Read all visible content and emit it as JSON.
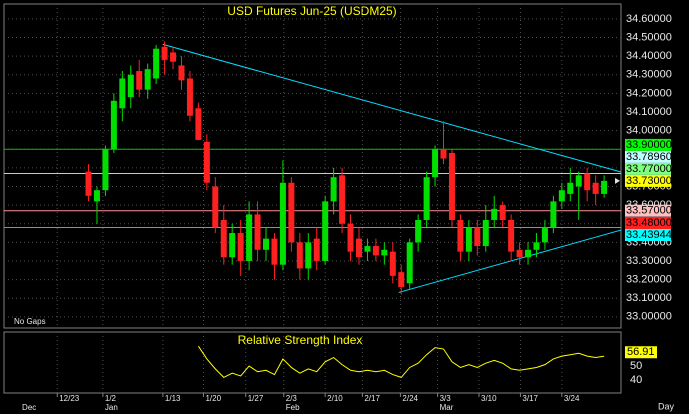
{
  "chart_data": {
    "type": "candlestick",
    "title": "USD Futures Jun-25 (USDM25)",
    "note": "No Gaps",
    "x_axis_label": "Day",
    "x": [
      0,
      1,
      2,
      3,
      4,
      5,
      6,
      7,
      8,
      9,
      10,
      11,
      12,
      13,
      14,
      15,
      16,
      17,
      18,
      19,
      20,
      21,
      22,
      23,
      24,
      25,
      26,
      27,
      28,
      29,
      30,
      31,
      32,
      33,
      34,
      35,
      36,
      37,
      38,
      39,
      40,
      41,
      42,
      43,
      44,
      45,
      46,
      47,
      48,
      49,
      50,
      51,
      52,
      53,
      54,
      55,
      56,
      57,
      58,
      59,
      60,
      61
    ],
    "open": [
      33.78,
      33.62,
      33.68,
      33.9,
      34.12,
      34.18,
      34.32,
      34.22,
      34.28,
      34.45,
      34.42,
      34.35,
      34.28,
      34.12,
      33.94,
      33.7,
      33.52,
      33.32,
      33.45,
      33.3,
      33.55,
      33.36,
      33.42,
      33.28,
      33.72,
      33.4,
      33.26,
      33.42,
      33.3,
      33.62,
      33.76,
      33.5,
      33.42,
      33.35,
      33.38,
      33.33,
      33.35,
      33.24,
      33.18,
      33.4,
      33.52,
      33.75,
      33.9,
      33.88,
      33.52,
      33.35,
      33.48,
      33.38,
      33.52,
      33.6,
      33.52,
      33.36,
      33.32,
      33.36,
      33.4,
      33.48,
      33.62,
      33.66,
      33.7,
      33.77,
      33.72,
      33.66
    ],
    "high": [
      33.82,
      33.7,
      33.92,
      34.2,
      34.32,
      34.35,
      34.38,
      34.36,
      34.46,
      34.48,
      34.45,
      34.4,
      34.32,
      34.15,
      33.98,
      33.75,
      33.6,
      33.5,
      33.52,
      33.62,
      33.62,
      33.48,
      33.45,
      33.84,
      33.75,
      33.45,
      33.45,
      33.48,
      33.65,
      33.8,
      33.8,
      33.55,
      33.48,
      33.42,
      33.42,
      33.4,
      33.4,
      33.28,
      33.42,
      33.55,
      33.78,
      33.92,
      34.05,
      33.9,
      33.55,
      33.52,
      33.52,
      33.6,
      33.65,
      33.62,
      33.55,
      33.4,
      33.4,
      33.45,
      33.52,
      33.65,
      33.72,
      33.8,
      33.78,
      33.8,
      33.76,
      33.76
    ],
    "low": [
      33.62,
      33.5,
      33.65,
      33.88,
      34.05,
      34.12,
      34.18,
      34.17,
      34.25,
      34.3,
      34.33,
      34.22,
      34.05,
      33.95,
      33.68,
      33.45,
      33.28,
      33.28,
      33.22,
      33.25,
      33.3,
      33.3,
      33.2,
      33.25,
      33.35,
      33.2,
      33.2,
      33.25,
      33.28,
      33.55,
      33.45,
      33.3,
      33.28,
      33.3,
      33.3,
      33.28,
      33.18,
      33.12,
      33.15,
      33.35,
      33.48,
      33.7,
      33.82,
      33.48,
      33.3,
      33.3,
      33.33,
      33.35,
      33.48,
      33.48,
      33.3,
      33.28,
      33.28,
      33.32,
      33.36,
      33.45,
      33.58,
      33.62,
      33.52,
      33.62,
      33.6,
      33.64
    ],
    "close": [
      33.65,
      33.68,
      33.9,
      34.16,
      34.28,
      34.3,
      34.22,
      34.33,
      34.44,
      34.38,
      34.37,
      34.27,
      34.08,
      33.95,
      33.72,
      33.48,
      33.32,
      33.45,
      33.3,
      33.55,
      33.36,
      33.42,
      33.28,
      33.72,
      33.4,
      33.26,
      33.4,
      33.3,
      33.62,
      33.75,
      33.5,
      33.35,
      33.32,
      33.38,
      33.33,
      33.36,
      33.22,
      33.16,
      33.4,
      33.52,
      33.75,
      33.9,
      33.85,
      33.52,
      33.35,
      33.48,
      33.38,
      33.52,
      33.58,
      33.52,
      33.35,
      33.32,
      33.36,
      33.4,
      33.48,
      33.62,
      33.68,
      33.72,
      33.76,
      33.68,
      33.66,
      33.73
    ],
    "up_color": "#00e000",
    "down_color": "#ff2020",
    "xlim": [
      -10,
      63
    ],
    "ylim": [
      32.94,
      34.68
    ],
    "yticks": [
      {
        "value": 34.6,
        "label": "34.60000"
      },
      {
        "value": 34.5,
        "label": "34.50000"
      },
      {
        "value": 34.4,
        "label": "34.40000"
      },
      {
        "value": 34.3,
        "label": "34.30000"
      },
      {
        "value": 34.2,
        "label": "34.20000"
      },
      {
        "value": 34.1,
        "label": "34.10000"
      },
      {
        "value": 34.0,
        "label": "34.00000"
      },
      {
        "value": 33.9,
        "label": "33.90000"
      },
      {
        "value": 33.8,
        "label": "33.80000"
      },
      {
        "value": 33.7,
        "label": "33.70000"
      },
      {
        "value": 33.6,
        "label": "33.60000"
      },
      {
        "value": 33.5,
        "label": "33.50000"
      },
      {
        "value": 33.4,
        "label": "33.40000"
      },
      {
        "value": 33.3,
        "label": "33.30000"
      },
      {
        "value": 33.2,
        "label": "33.20000"
      },
      {
        "value": 33.1,
        "label": "33.10000"
      },
      {
        "value": 33.0,
        "label": "33.00000"
      }
    ],
    "xticks": [
      {
        "value": -3.7,
        "label": "12/23"
      },
      {
        "value": 1.7,
        "label": "1/2"
      },
      {
        "value": 8.8,
        "label": "1/13"
      },
      {
        "value": 13.6,
        "label": "1/20"
      },
      {
        "value": 18.6,
        "label": "1/27"
      },
      {
        "value": 23.1,
        "label": "2/3"
      },
      {
        "value": 28.0,
        "label": "2/10"
      },
      {
        "value": 32.4,
        "label": "2/17"
      },
      {
        "value": 36.9,
        "label": "2/24"
      },
      {
        "value": 41.3,
        "label": "3/3"
      },
      {
        "value": 46.2,
        "label": "3/10"
      },
      {
        "value": 51.1,
        "label": "3/17"
      },
      {
        "value": 56.0,
        "label": "3/24"
      }
    ],
    "month_ticks": [
      {
        "value": -8.1,
        "label": "Dec"
      },
      {
        "value": 1.7,
        "label": "Jan"
      },
      {
        "value": 23.1,
        "label": "Feb"
      },
      {
        "value": 41.3,
        "label": "Mar"
      }
    ],
    "grid": true,
    "levels": [
      {
        "value": 33.9,
        "label": "33.90000",
        "color": "#00ff00",
        "line_color": "#00c000"
      },
      {
        "value": 33.7896,
        "label": "33.78960",
        "color": "#c0ffff"
      },
      {
        "value": 33.77,
        "label": "33.77000",
        "color": "#80ff80",
        "line_color": "#80ff80"
      },
      {
        "value": 33.73,
        "label": "33.73000",
        "color": "#ffff00"
      },
      {
        "value": 33.57,
        "label": "33.57000",
        "color": "#ffc0c0",
        "line_color": "#ff9090"
      },
      {
        "value": 33.48,
        "label": "33.48000",
        "color": "#ff2020",
        "line_color": "#ff6060"
      },
      {
        "value": 33.43944,
        "label": "33.43944",
        "color": "#00ffff"
      }
    ],
    "trendlines": [
      {
        "x": [
          8.8,
          63
        ],
        "y": [
          34.463,
          33.778
        ],
        "color": "#00e0ff"
      },
      {
        "x": [
          36.7,
          63
        ],
        "y": [
          33.131,
          33.466
        ],
        "color": "#00e0ff"
      }
    ],
    "rsi": {
      "title": "Relative Strength Index",
      "color": "#ffff00",
      "values": [
        null,
        null,
        null,
        null,
        null,
        null,
        null,
        null,
        null,
        null,
        null,
        null,
        null,
        64,
        55,
        48,
        42,
        45,
        43,
        50,
        46,
        47,
        44,
        55,
        49,
        45,
        48,
        46,
        53,
        56,
        51,
        47,
        46,
        47,
        46,
        47,
        44,
        42,
        49,
        52,
        58,
        63,
        62,
        53,
        49,
        51,
        49,
        52,
        54,
        52,
        48,
        47,
        48,
        49,
        51,
        55,
        57,
        58,
        59,
        57,
        56,
        56.91
      ],
      "last_label": "56.91",
      "ylim": [
        31,
        74
      ],
      "yticks": [
        60,
        50,
        40
      ]
    }
  }
}
